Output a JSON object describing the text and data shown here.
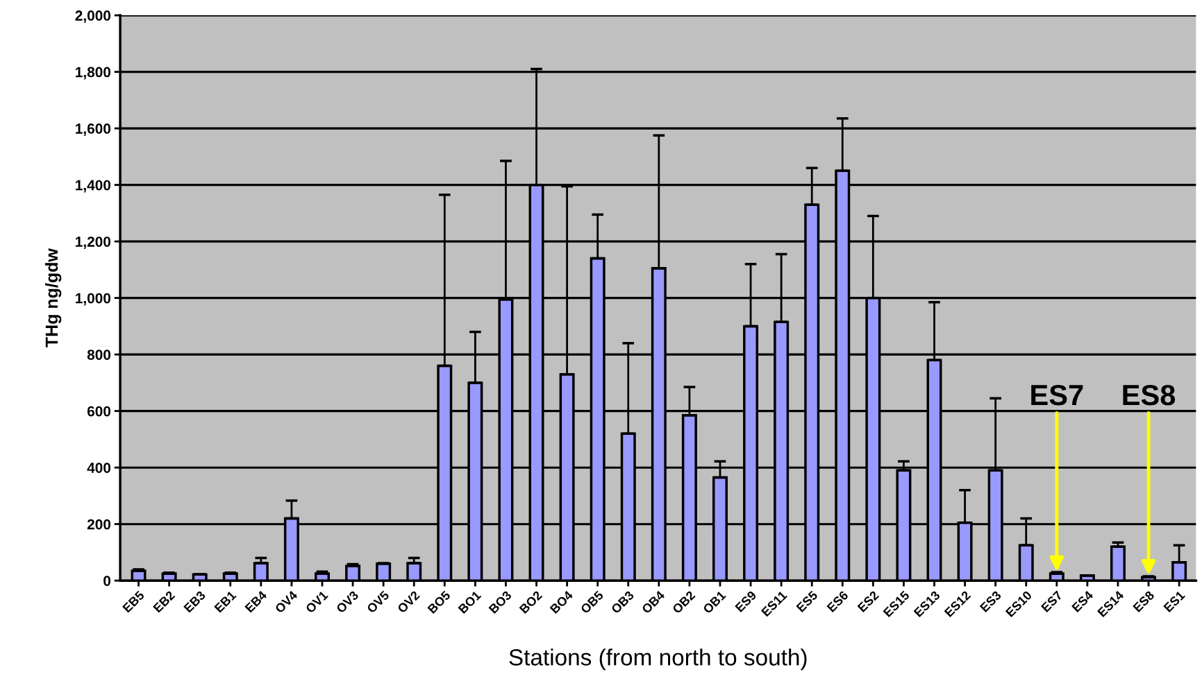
{
  "chart_data": {
    "type": "bar",
    "xlabel": "Stations (from north to south)",
    "ylabel": "THg ng/gdw",
    "categories": [
      "EB5",
      "EB2",
      "EB3",
      "EB1",
      "EB4",
      "OV4",
      "OV1",
      "OV3",
      "OV5",
      "OV2",
      "BO5",
      "BO1",
      "BO3",
      "BO2",
      "BO4",
      "OB5",
      "OB3",
      "OB4",
      "OB2",
      "OB1",
      "ES9",
      "ES11",
      "ES5",
      "ES6",
      "ES2",
      "ES15",
      "ES13",
      "ES12",
      "ES3",
      "ES10",
      "ES7",
      "ES4",
      "ES14",
      "ES8",
      "ES1"
    ],
    "values": [
      35,
      25,
      22,
      25,
      62,
      220,
      25,
      52,
      60,
      62,
      760,
      700,
      995,
      1400,
      730,
      1140,
      520,
      1105,
      585,
      365,
      900,
      915,
      1330,
      1450,
      1000,
      390,
      780,
      205,
      390,
      125,
      25,
      18,
      120,
      12,
      65
    ],
    "errors": [
      [
        35,
        40
      ],
      [
        25,
        28
      ],
      [
        22,
        22
      ],
      [
        25,
        28
      ],
      [
        62,
        80
      ],
      [
        220,
        283
      ],
      [
        25,
        32
      ],
      [
        52,
        58
      ],
      [
        60,
        62
      ],
      [
        62,
        80
      ],
      [
        760,
        1365
      ],
      [
        700,
        880
      ],
      [
        995,
        1485
      ],
      [
        1400,
        1810
      ],
      [
        730,
        1395
      ],
      [
        1140,
        1295
      ],
      [
        520,
        840
      ],
      [
        1105,
        1575
      ],
      [
        585,
        685
      ],
      [
        365,
        422
      ],
      [
        900,
        1120
      ],
      [
        915,
        1155
      ],
      [
        1330,
        1460
      ],
      [
        1450,
        1635
      ],
      [
        1000,
        1290
      ],
      [
        390,
        422
      ],
      [
        780,
        985
      ],
      [
        205,
        320
      ],
      [
        390,
        645
      ],
      [
        125,
        220
      ],
      [
        25,
        30
      ],
      [
        18,
        18
      ],
      [
        120,
        135
      ],
      [
        12,
        15
      ],
      [
        65,
        125
      ]
    ],
    "color": "#9999ff",
    "ylim": [
      0,
      2000
    ],
    "yticks": [
      {
        "value": 0,
        "label": "0"
      },
      {
        "value": 200,
        "label": "200"
      },
      {
        "value": 400,
        "label": "400"
      },
      {
        "value": 600,
        "label": "600"
      },
      {
        "value": 800,
        "label": "800"
      },
      {
        "value": 1000,
        "label": "1,000"
      },
      {
        "value": 1200,
        "label": "1,200"
      },
      {
        "value": 1400,
        "label": "1,400"
      },
      {
        "value": 1600,
        "label": "1,600"
      },
      {
        "value": 1800,
        "label": "1,800"
      },
      {
        "value": 2000,
        "label": "2,000"
      }
    ],
    "grid": "y",
    "annotations": [
      {
        "text": "ES7",
        "x": "ES7",
        "y": 25
      },
      {
        "text": "ES8",
        "x": "ES8",
        "y": 12
      }
    ]
  }
}
